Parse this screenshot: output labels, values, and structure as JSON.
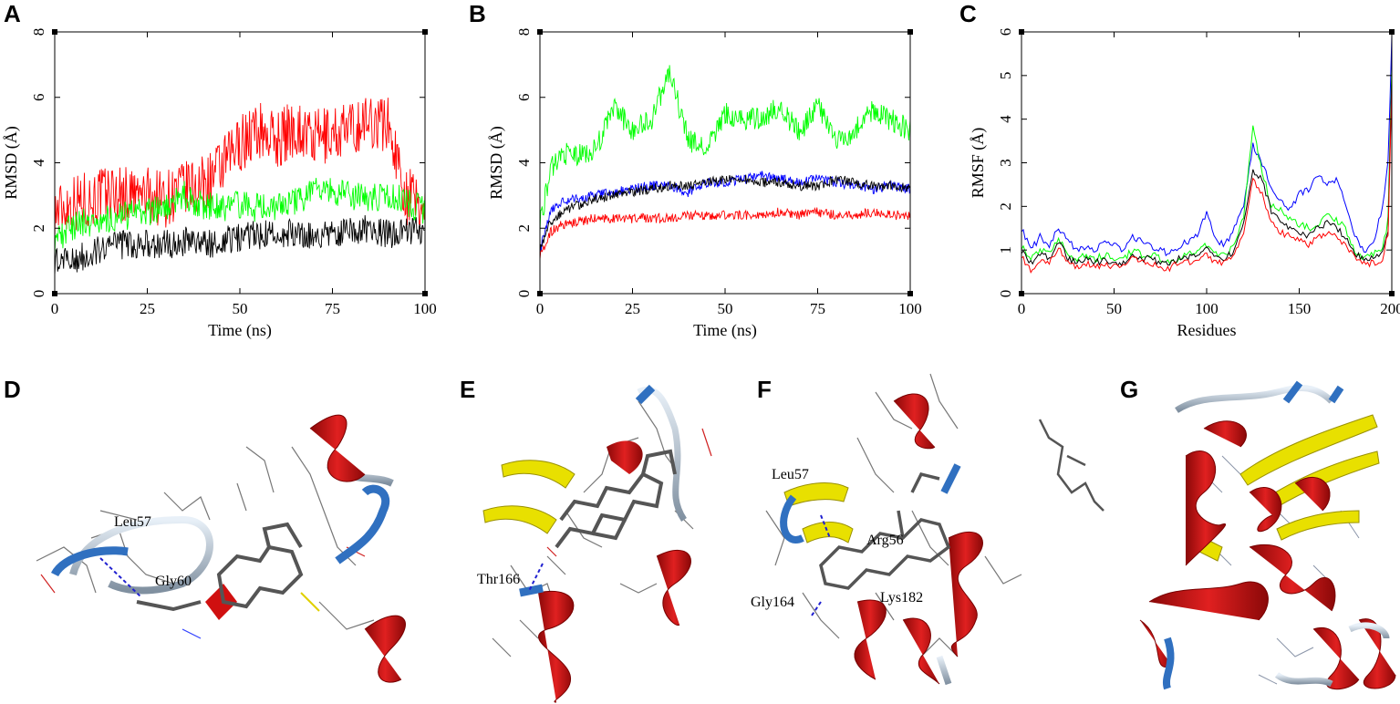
{
  "panels": {
    "A": "A",
    "B": "B",
    "C": "C",
    "D": "D",
    "E": "E",
    "F": "F",
    "G": "G"
  },
  "colors": {
    "red": "#ff0000",
    "green": "#00ff00",
    "black": "#000000",
    "blue": "#0000ff",
    "helix": "#d01010",
    "sheet": "#e8e000",
    "coil": "#b8c8d8",
    "turn": "#3070c0",
    "ligand": "#606060"
  },
  "chart_data": [
    {
      "panel": "A",
      "type": "line",
      "xlabel": "Time (ns)",
      "ylabel": "RMSD (Å)",
      "xlim": [
        0,
        100
      ],
      "ylim": [
        0,
        8
      ],
      "xticks": [
        "0",
        "25",
        "50",
        "75",
        "100"
      ],
      "yticks": [
        "0",
        "2",
        "4",
        "6",
        "8"
      ],
      "series": [
        {
          "color": "#ff0000",
          "x": [
            0,
            5,
            10,
            15,
            20,
            25,
            30,
            35,
            40,
            45,
            50,
            55,
            60,
            65,
            70,
            75,
            80,
            85,
            90,
            95,
            100
          ],
          "y": [
            2.5,
            2.8,
            2.9,
            3.1,
            3.0,
            3.0,
            2.9,
            3.2,
            3.3,
            3.8,
            4.6,
            5.0,
            4.7,
            5.1,
            4.7,
            4.9,
            5.0,
            5.3,
            5.2,
            3.0,
            2.6
          ]
        },
        {
          "color": "#00ff00",
          "x": [
            0,
            5,
            10,
            15,
            20,
            25,
            30,
            35,
            40,
            45,
            50,
            55,
            60,
            65,
            70,
            75,
            80,
            85,
            90,
            95,
            100
          ],
          "y": [
            1.6,
            2.1,
            2.2,
            2.3,
            2.4,
            2.5,
            2.6,
            3.0,
            2.7,
            2.6,
            2.7,
            2.6,
            2.7,
            2.8,
            3.1,
            3.1,
            3.0,
            2.9,
            3.0,
            2.8,
            2.5
          ]
        },
        {
          "color": "#000000",
          "x": [
            0,
            5,
            10,
            15,
            20,
            25,
            30,
            35,
            40,
            45,
            50,
            55,
            60,
            65,
            70,
            75,
            80,
            85,
            90,
            95,
            100
          ],
          "y": [
            1.0,
            1.0,
            1.3,
            1.5,
            1.5,
            1.5,
            1.5,
            1.6,
            1.5,
            1.6,
            1.7,
            1.8,
            1.8,
            1.9,
            1.8,
            1.9,
            1.9,
            2.0,
            1.8,
            1.9,
            2.0
          ]
        }
      ]
    },
    {
      "panel": "B",
      "type": "line",
      "xlabel": "Time (ns)",
      "ylabel": "RMSD (Å)",
      "xlim": [
        0,
        100
      ],
      "ylim": [
        0,
        8
      ],
      "xticks": [
        "0",
        "25",
        "50",
        "75",
        "100"
      ],
      "yticks": [
        "0",
        "2",
        "4",
        "6",
        "8"
      ],
      "series": [
        {
          "color": "#00ff00",
          "x": [
            0,
            3,
            6,
            10,
            15,
            20,
            25,
            30,
            35,
            40,
            45,
            50,
            55,
            60,
            65,
            70,
            75,
            80,
            85,
            90,
            95,
            100
          ],
          "y": [
            2.2,
            3.8,
            4.3,
            4.2,
            4.4,
            5.7,
            5.0,
            5.3,
            6.8,
            4.7,
            4.4,
            5.5,
            5.3,
            5.4,
            5.7,
            4.9,
            5.8,
            4.6,
            5.0,
            5.6,
            5.3,
            5.0
          ]
        },
        {
          "color": "#0000ff",
          "x": [
            0,
            3,
            6,
            10,
            15,
            20,
            25,
            30,
            35,
            40,
            45,
            50,
            55,
            60,
            65,
            70,
            75,
            80,
            85,
            90,
            95,
            100
          ],
          "y": [
            1.3,
            2.6,
            2.8,
            2.9,
            3.0,
            3.1,
            3.2,
            3.3,
            3.3,
            3.1,
            3.4,
            3.4,
            3.5,
            3.6,
            3.5,
            3.4,
            3.5,
            3.4,
            3.3,
            3.2,
            3.3,
            3.2
          ]
        },
        {
          "color": "#000000",
          "x": [
            0,
            3,
            6,
            10,
            15,
            20,
            25,
            30,
            35,
            40,
            45,
            50,
            55,
            60,
            65,
            70,
            75,
            80,
            85,
            90,
            95,
            100
          ],
          "y": [
            1.4,
            2.2,
            2.5,
            2.7,
            2.9,
            3.0,
            3.1,
            3.2,
            3.3,
            3.3,
            3.4,
            3.5,
            3.5,
            3.4,
            3.4,
            3.3,
            3.3,
            3.5,
            3.4,
            3.3,
            3.3,
            3.2
          ]
        },
        {
          "color": "#ff0000",
          "x": [
            0,
            3,
            6,
            10,
            15,
            20,
            25,
            30,
            35,
            40,
            45,
            50,
            55,
            60,
            65,
            70,
            75,
            80,
            85,
            90,
            95,
            100
          ],
          "y": [
            1.2,
            1.9,
            2.1,
            2.2,
            2.3,
            2.3,
            2.3,
            2.3,
            2.3,
            2.4,
            2.4,
            2.4,
            2.4,
            2.4,
            2.5,
            2.4,
            2.5,
            2.4,
            2.4,
            2.5,
            2.4,
            2.4
          ]
        }
      ]
    },
    {
      "panel": "C",
      "type": "line",
      "xlabel": "Residues",
      "ylabel": "RMSF (Å)",
      "xlim": [
        0,
        200
      ],
      "ylim": [
        0,
        6
      ],
      "xticks": [
        "0",
        "50",
        "100",
        "150",
        "200"
      ],
      "yticks": [
        "0",
        "1",
        "2",
        "3",
        "4",
        "5",
        "6"
      ],
      "series": [
        {
          "color": "#0000ff",
          "x": [
            0,
            5,
            10,
            15,
            20,
            25,
            30,
            35,
            40,
            45,
            50,
            55,
            60,
            65,
            70,
            75,
            80,
            85,
            90,
            95,
            100,
            105,
            110,
            115,
            120,
            125,
            130,
            135,
            140,
            145,
            150,
            155,
            160,
            165,
            170,
            175,
            180,
            185,
            190,
            195,
            198,
            200
          ],
          "y": [
            1.5,
            1.0,
            1.3,
            1.1,
            1.5,
            1.2,
            1.0,
            1.1,
            1.0,
            1.2,
            1.1,
            1.0,
            1.3,
            1.2,
            1.1,
            1.0,
            0.9,
            1.1,
            1.2,
            1.3,
            1.9,
            1.2,
            1.1,
            1.5,
            2.0,
            3.4,
            3.0,
            2.4,
            2.1,
            1.9,
            2.3,
            2.4,
            2.7,
            2.5,
            2.6,
            2.1,
            1.3,
            1.0,
            1.1,
            2.0,
            3.0,
            5.9
          ]
        },
        {
          "color": "#00ff00",
          "x": [
            0,
            5,
            10,
            15,
            20,
            25,
            30,
            35,
            40,
            45,
            50,
            55,
            60,
            65,
            70,
            75,
            80,
            85,
            90,
            95,
            100,
            105,
            110,
            115,
            120,
            125,
            130,
            135,
            140,
            145,
            150,
            155,
            160,
            165,
            170,
            175,
            180,
            185,
            190,
            195,
            198,
            200
          ],
          "y": [
            1.1,
            0.8,
            1.0,
            0.9,
            1.3,
            0.9,
            0.8,
            0.9,
            0.8,
            0.9,
            0.8,
            0.8,
            1.0,
            0.9,
            0.9,
            0.8,
            0.7,
            0.8,
            0.9,
            1.0,
            1.1,
            0.9,
            0.9,
            1.1,
            1.8,
            3.8,
            2.8,
            2.0,
            1.9,
            1.7,
            1.6,
            1.5,
            1.6,
            1.8,
            1.7,
            1.5,
            1.0,
            0.8,
            0.9,
            1.0,
            1.7,
            5.2
          ]
        },
        {
          "color": "#000000",
          "x": [
            0,
            5,
            10,
            15,
            20,
            25,
            30,
            35,
            40,
            45,
            50,
            55,
            60,
            65,
            70,
            75,
            80,
            85,
            90,
            95,
            100,
            105,
            110,
            115,
            120,
            125,
            130,
            135,
            140,
            145,
            150,
            155,
            160,
            165,
            170,
            175,
            180,
            185,
            190,
            195,
            198,
            200
          ],
          "y": [
            1.0,
            0.7,
            0.9,
            0.8,
            1.2,
            0.8,
            0.7,
            0.8,
            0.7,
            0.8,
            0.7,
            0.7,
            0.9,
            0.8,
            0.8,
            0.7,
            0.7,
            0.8,
            0.8,
            0.9,
            1.0,
            0.8,
            0.8,
            1.0,
            1.6,
            2.8,
            2.6,
            1.9,
            1.7,
            1.5,
            1.4,
            1.3,
            1.5,
            1.6,
            1.5,
            1.3,
            0.9,
            0.8,
            0.8,
            0.9,
            1.5,
            5.0
          ]
        },
        {
          "color": "#ff0000",
          "x": [
            0,
            5,
            10,
            15,
            20,
            25,
            30,
            35,
            40,
            45,
            50,
            55,
            60,
            65,
            70,
            75,
            80,
            85,
            90,
            95,
            100,
            105,
            110,
            115,
            120,
            125,
            130,
            135,
            140,
            145,
            150,
            155,
            160,
            165,
            170,
            175,
            180,
            185,
            190,
            195,
            198,
            200
          ],
          "y": [
            0.9,
            0.5,
            0.8,
            0.7,
            1.1,
            0.7,
            0.6,
            0.7,
            0.6,
            0.7,
            0.6,
            0.6,
            0.8,
            0.7,
            0.7,
            0.6,
            0.6,
            0.7,
            0.7,
            0.8,
            0.9,
            0.7,
            0.7,
            0.9,
            1.4,
            2.6,
            2.3,
            1.6,
            1.4,
            1.3,
            1.2,
            1.1,
            1.3,
            1.4,
            1.3,
            1.1,
            0.8,
            0.7,
            0.7,
            0.8,
            1.4,
            4.8
          ]
        }
      ]
    }
  ],
  "structures": {
    "D": {
      "labels": [
        "Leu57",
        "Gly60"
      ]
    },
    "E": {
      "labels": [
        "Thr166"
      ]
    },
    "F": {
      "labels": [
        "Leu57",
        "Arg56",
        "Gly164",
        "Lys182"
      ]
    },
    "G": {
      "labels": []
    }
  }
}
